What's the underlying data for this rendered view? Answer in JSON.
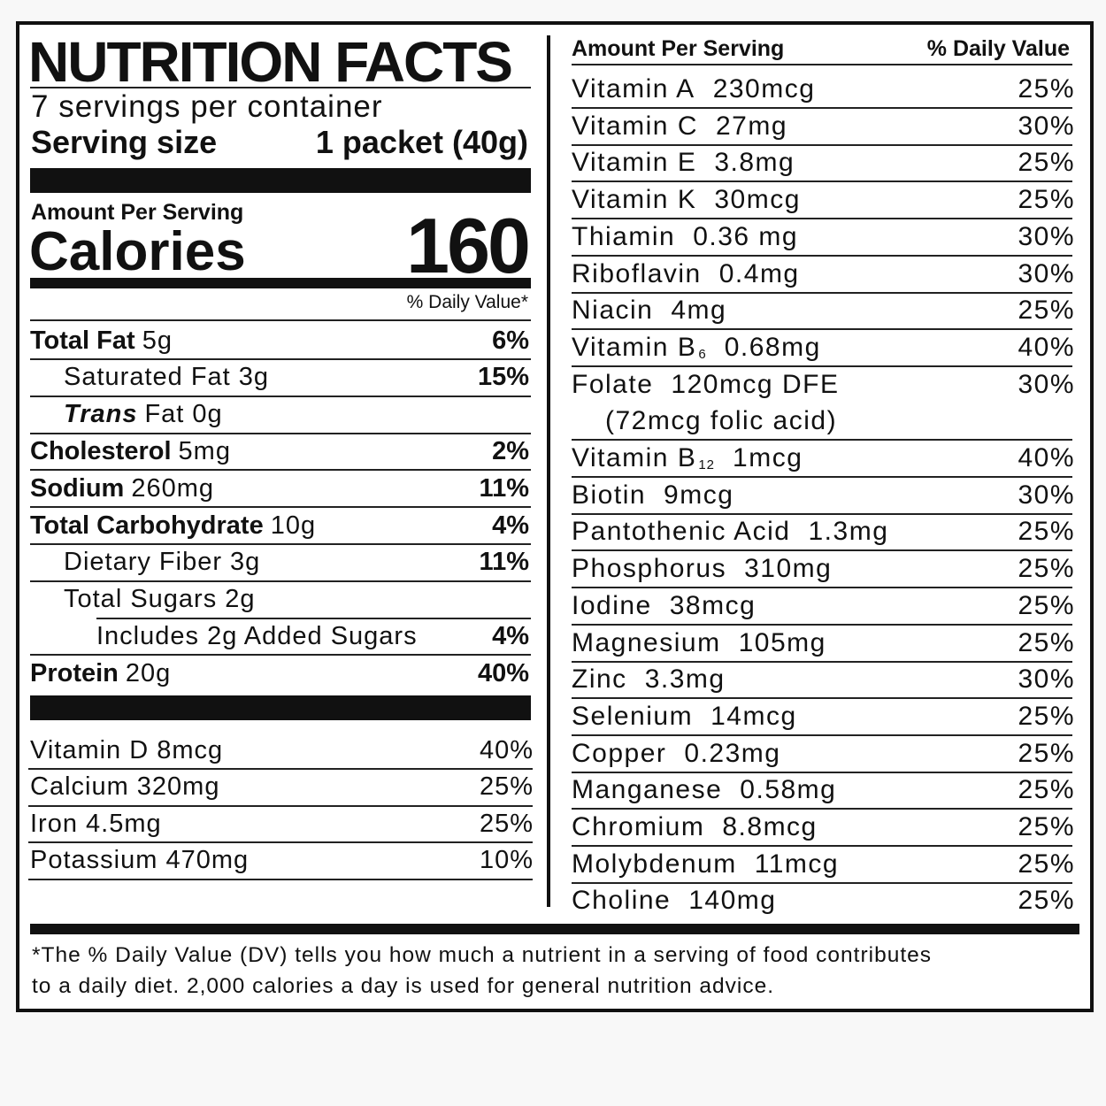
{
  "header": {
    "title": "NUTRITION FACTS",
    "servings": "7 servings per container",
    "serving_size_label": "Serving size",
    "serving_size_value": "1 packet (40g)"
  },
  "calories": {
    "amount_label": "Amount Per Serving",
    "label": "Calories",
    "value": 160
  },
  "dv_header": "% Daily Value*",
  "nutrients": [
    {
      "name": "Total Fat",
      "amount": "5g",
      "dv": "6%",
      "level": 0
    },
    {
      "name": "Saturated Fat 3g",
      "dv": "15%",
      "level": 1
    },
    {
      "name": "Trans",
      "amount": "Fat 0g",
      "level": 1,
      "italic": true
    },
    {
      "name": "Cholesterol",
      "amount": "5mg",
      "dv": "2%",
      "level": 0
    },
    {
      "name": "Sodium",
      "amount": "260mg",
      "dv": "11%",
      "level": 0
    },
    {
      "name": "Total Carbohydrate",
      "amount": "10g",
      "dv": "4%",
      "level": 0
    },
    {
      "name": "Dietary Fiber 3g",
      "dv": "11%",
      "level": 1
    },
    {
      "name": "Total Sugars 2g",
      "level": 1
    },
    {
      "name": "Includes 2g Added Sugars",
      "dv": "4%",
      "level": 2
    },
    {
      "name": "Protein",
      "amount": "20g",
      "dv": "40%",
      "level": 0
    }
  ],
  "minerals_left": [
    {
      "name": "Vitamin D 8mcg",
      "dv": "40%"
    },
    {
      "name": "Calcium 320mg",
      "dv": "25%"
    },
    {
      "name": "Iron 4.5mg",
      "dv": "25%"
    },
    {
      "name": "Potassium 470mg",
      "dv": "10%"
    }
  ],
  "right": {
    "amount_label": "Amount Per Serving",
    "dv_label": "% Daily Value",
    "rows": [
      {
        "name": "Vitamin A",
        "amount": "230mcg",
        "dv": "25%"
      },
      {
        "name": "Vitamin C",
        "amount": "27mg",
        "dv": "30%"
      },
      {
        "name": "Vitamin E",
        "amount": "3.8mg",
        "dv": "25%"
      },
      {
        "name": "Vitamin K",
        "amount": "30mcg",
        "dv": "25%"
      },
      {
        "name": "Thiamin",
        "amount": "0.36 mg",
        "dv": "30%"
      },
      {
        "name": "Riboflavin",
        "amount": "0.4mg",
        "dv": "30%"
      },
      {
        "name": "Niacin",
        "amount": "4mg",
        "dv": "25%"
      },
      {
        "name": "Vitamin B",
        "sub": "6",
        "amount": "0.68mg",
        "dv": "40%"
      },
      {
        "name": "Folate",
        "amount": "120mcg DFE",
        "dv": "30%",
        "note": "(72mcg folic acid)"
      },
      {
        "name": "Vitamin B",
        "sub": "12",
        "amount": "1mcg",
        "dv": "40%"
      },
      {
        "name": "Biotin",
        "amount": "9mcg",
        "dv": "30%"
      },
      {
        "name": "Pantothenic Acid",
        "amount": "1.3mg",
        "dv": "25%"
      },
      {
        "name": "Phosphorus",
        "amount": "310mg",
        "dv": "25%"
      },
      {
        "name": "Iodine",
        "amount": "38mcg",
        "dv": "25%"
      },
      {
        "name": "Magnesium",
        "amount": "105mg",
        "dv": "25%"
      },
      {
        "name": "Zinc",
        "amount": "3.3mg",
        "dv": "30%"
      },
      {
        "name": "Selenium",
        "amount": "14mcg",
        "dv": "25%"
      },
      {
        "name": "Copper",
        "amount": "0.23mg",
        "dv": "25%"
      },
      {
        "name": "Manganese",
        "amount": "0.58mg",
        "dv": "25%"
      },
      {
        "name": "Chromium",
        "amount": "8.8mcg",
        "dv": "25%"
      },
      {
        "name": "Molybdenum",
        "amount": "11mcg",
        "dv": "25%"
      },
      {
        "name": "Choline",
        "amount": "140mg",
        "dv": "25%"
      }
    ]
  },
  "footnote": [
    "*The % Daily Value (DV) tells you how much a nutrient in a serving of food contributes",
    "to a daily diet. 2,000 calories a day is used for general nutrition advice."
  ]
}
